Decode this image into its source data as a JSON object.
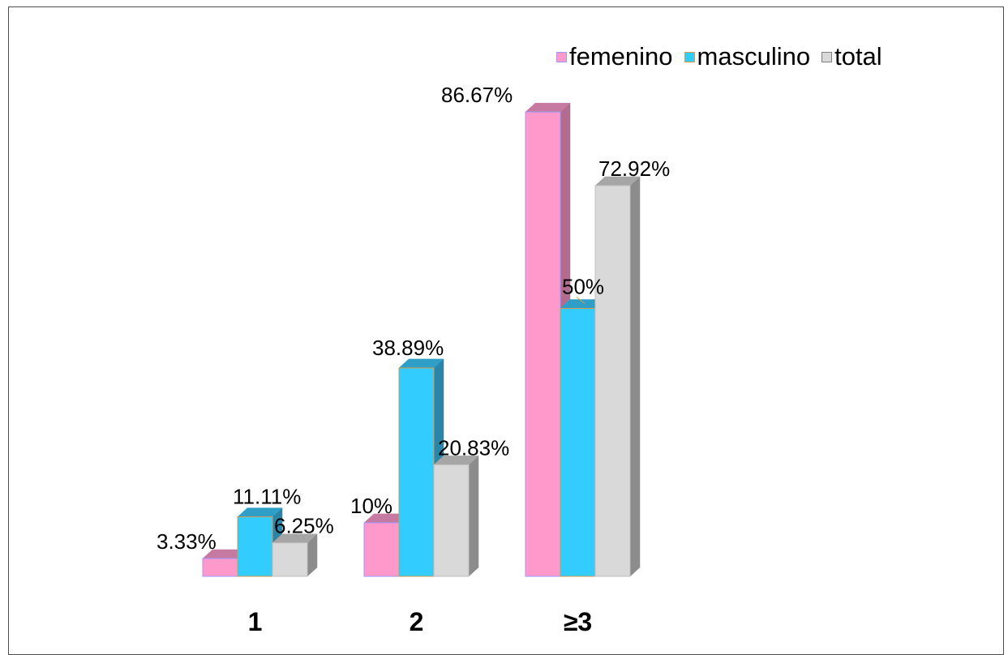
{
  "chart_data": {
    "type": "bar",
    "title": "",
    "xlabel": "",
    "ylabel": "",
    "categories": [
      "1",
      "2",
      "≥3"
    ],
    "series": [
      {
        "name": "femenino",
        "values": [
          3.33,
          10,
          86.67
        ],
        "labels": [
          "3.33%",
          "10%",
          "86.67%"
        ],
        "color": "#ff99cc",
        "side_color": "#b36b8f",
        "top_color": "#c77aa1",
        "edge_color": "#9999ff"
      },
      {
        "name": "masculino",
        "values": [
          11.11,
          38.89,
          50
        ],
        "labels": [
          "11.11%",
          "38.89%",
          "50%"
        ],
        "color": "#33ccff",
        "side_color": "#2a86a8",
        "top_color": "#2f9fc7",
        "edge_color": "#d99a4a"
      },
      {
        "name": "total",
        "values": [
          6.25,
          20.83,
          72.92
        ],
        "labels": [
          "6.25%",
          "20.83%",
          "72.92%"
        ],
        "color": "#d9d9d9",
        "side_color": "#8c8c8c",
        "top_color": "#a6a6a6",
        "edge_color": "#bfbfbf"
      }
    ],
    "ylim": [
      0,
      100
    ],
    "grid": false,
    "legend_position": "top-right",
    "style": "3d-clustered-column"
  }
}
